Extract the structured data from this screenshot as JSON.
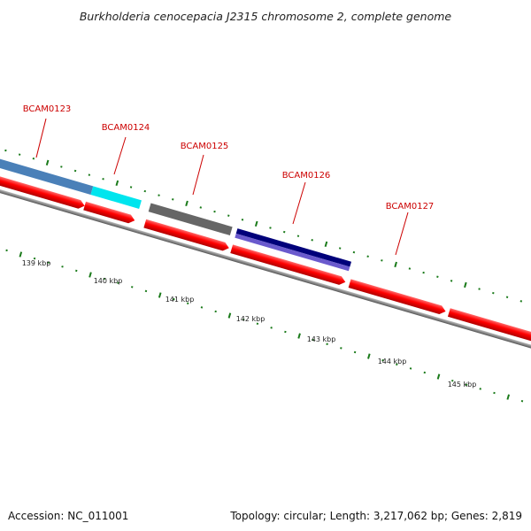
{
  "title": "Burkholderia cenocepacia J2315 chromosome 2, complete genome",
  "accession_text": "Accession: NC_011001",
  "topology_text": "Topology: circular; Length: 3,217,062 bp; Genes: 2,819",
  "genes": [
    {
      "name": "BCAM0123",
      "color": "#4a80b8"
    },
    {
      "name": "BCAM0124",
      "color": "#00e5ee"
    },
    {
      "name": "BCAM0125",
      "color": "#666666"
    },
    {
      "name": "BCAM0126",
      "color": "#00007a"
    },
    {
      "name": "BCAM0127",
      "color": "#ff0000"
    }
  ],
  "scale_labels": [
    "139 kbp",
    "140 kbp",
    "141 kbp",
    "142 kbp",
    "143 kbp",
    "144 kbp",
    "145 kbp"
  ],
  "colors": {
    "cds": "#ff0000",
    "backbone": "#888888",
    "ticks": "#1a7a1a",
    "label": "#cc0000"
  }
}
